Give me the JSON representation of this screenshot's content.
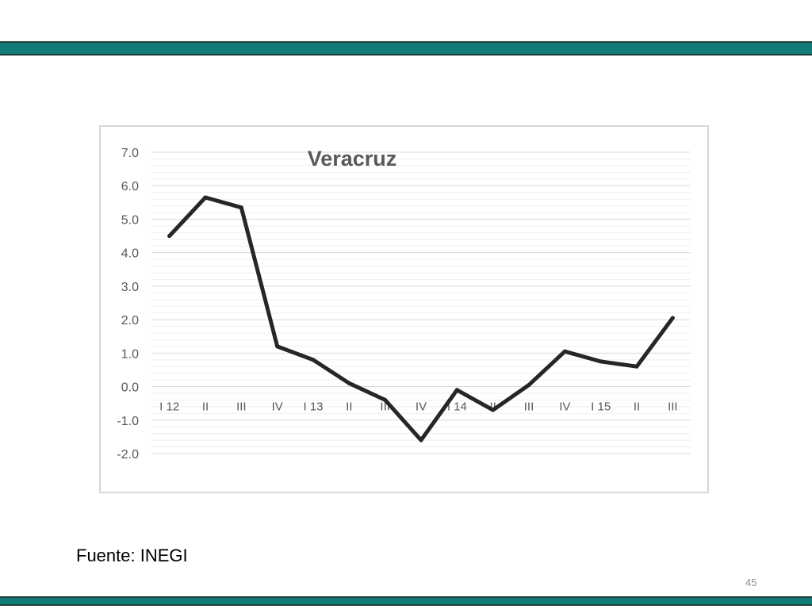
{
  "colors": {
    "band": "#117b78",
    "line": "#262626",
    "grid_major": "#d9d9d9",
    "grid_minor": "#efefef",
    "tick_text": "#595959",
    "title_text": "#595959"
  },
  "footer": {
    "source": "Fuente: INEGI",
    "page_number": "45"
  },
  "chart_data": {
    "type": "line",
    "title": "Veracruz",
    "xlabel": "",
    "ylabel": "",
    "categories": [
      "I 12",
      "II",
      "III",
      "IV",
      "I 13",
      "II",
      "III",
      "IV",
      "I 14",
      "II",
      "III",
      "IV",
      "I 15",
      "II",
      "III"
    ],
    "series": [
      {
        "values": [
          4.5,
          5.65,
          5.35,
          1.2,
          0.8,
          0.1,
          -0.4,
          -1.6,
          -0.1,
          -0.7,
          0.05,
          1.05,
          0.75,
          0.6,
          2.05
        ]
      }
    ],
    "ylim": [
      -2.0,
      7.0
    ],
    "y_ticks": [
      "7.0",
      "6.0",
      "5.0",
      "4.0",
      "3.0",
      "2.0",
      "1.0",
      "0.0",
      "-1.0",
      "-2.0"
    ],
    "grid": true,
    "minor_grid": true,
    "legend": "none"
  }
}
